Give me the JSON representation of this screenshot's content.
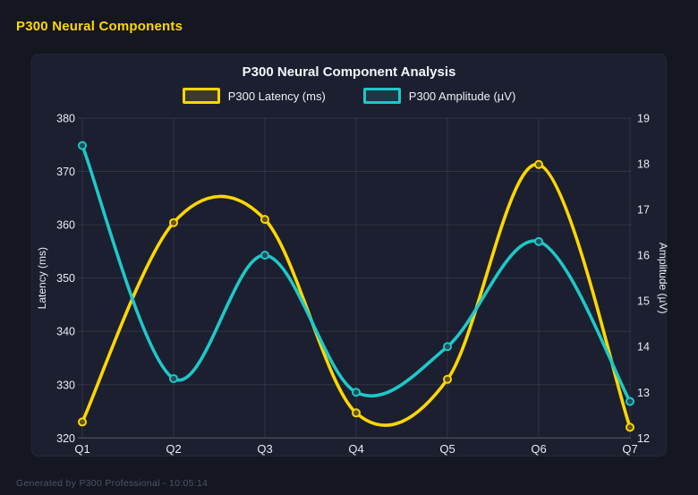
{
  "page": {
    "title": "P300 Neural Components",
    "footer": "Generated by P300 Professional - 10:05:14"
  },
  "colors": {
    "background": "#141720",
    "card": "#1C1F30",
    "grid": "rgba(255,255,255,0.09)",
    "axis_line": "rgba(255,255,255,0.18)",
    "tick_text": "#E9EBF2",
    "title_text": "#F5F6FA",
    "accent_yellow": "#FFD700",
    "accent_teal": "#1EC8C8",
    "footer_text": "#4E5468"
  },
  "chart_data": {
    "type": "line",
    "title": "P300 Neural Component Analysis",
    "smooth": true,
    "grid": true,
    "legend_position": "top",
    "categories": [
      "Q1",
      "Q2",
      "Q3",
      "Q4",
      "Q5",
      "Q6",
      "Q7"
    ],
    "series": [
      {
        "name": "P300 Latency (ms)",
        "axis": "left",
        "color": "#FFD700",
        "values": [
          323,
          360.4,
          361,
          324.7,
          331,
          371.3,
          322
        ]
      },
      {
        "name": "P300 Amplitude (µV)",
        "axis": "right",
        "color": "#1EC8C8",
        "values": [
          18.4,
          13.3,
          16,
          13,
          14,
          16.3,
          12.8
        ]
      }
    ],
    "axes": {
      "left": {
        "label": "Latency (ms)",
        "min": 320,
        "max": 380,
        "step": 10
      },
      "right": {
        "label": "Amplitude (µV)",
        "min": 12,
        "max": 19,
        "step": 1
      }
    }
  }
}
